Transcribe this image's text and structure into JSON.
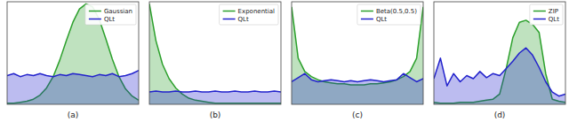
{
  "chart_data": [
    {
      "type": "area",
      "xlabel": "(a)",
      "xlim": [
        0,
        1
      ],
      "ylim": [
        0,
        1
      ],
      "tick_labels": false,
      "legend": "upper right",
      "x": [
        0,
        0.05,
        0.1,
        0.15,
        0.2,
        0.25,
        0.3,
        0.35,
        0.4,
        0.45,
        0.5,
        0.55,
        0.6,
        0.65,
        0.7,
        0.75,
        0.8,
        0.85,
        0.9,
        0.95,
        1
      ],
      "series": [
        {
          "name": "Gaussian",
          "color": "#2ca02c",
          "values": [
            0.01,
            0.01,
            0.02,
            0.03,
            0.05,
            0.09,
            0.16,
            0.27,
            0.43,
            0.62,
            0.8,
            0.93,
            0.98,
            0.95,
            0.83,
            0.64,
            0.44,
            0.27,
            0.15,
            0.08,
            0.04
          ]
        },
        {
          "name": "QLt",
          "color": "#2222cc",
          "values": [
            0.28,
            0.3,
            0.27,
            0.29,
            0.28,
            0.3,
            0.28,
            0.27,
            0.29,
            0.28,
            0.3,
            0.29,
            0.28,
            0.27,
            0.29,
            0.28,
            0.3,
            0.27,
            0.28,
            0.3,
            0.33
          ]
        }
      ]
    },
    {
      "type": "area",
      "xlabel": "(b)",
      "xlim": [
        0,
        1
      ],
      "ylim": [
        0,
        1
      ],
      "tick_labels": false,
      "legend": "upper right",
      "x": [
        0,
        0.05,
        0.1,
        0.15,
        0.2,
        0.25,
        0.3,
        0.35,
        0.4,
        0.45,
        0.5,
        0.55,
        0.6,
        0.65,
        0.7,
        0.75,
        0.8,
        0.85,
        0.9,
        0.95,
        1
      ],
      "series": [
        {
          "name": "Exponential",
          "color": "#2ca02c",
          "values": [
            0.98,
            0.62,
            0.39,
            0.25,
            0.16,
            0.1,
            0.06,
            0.04,
            0.03,
            0.02,
            0.01,
            0.01,
            0.01,
            0.01,
            0.01,
            0.01,
            0.01,
            0.01,
            0.01,
            0.01,
            0.01
          ]
        },
        {
          "name": "QLt",
          "color": "#2222cc",
          "values": [
            0.12,
            0.13,
            0.12,
            0.12,
            0.13,
            0.12,
            0.12,
            0.13,
            0.12,
            0.12,
            0.13,
            0.12,
            0.12,
            0.13,
            0.12,
            0.12,
            0.13,
            0.12,
            0.12,
            0.13,
            0.12
          ]
        }
      ]
    },
    {
      "type": "area",
      "xlabel": "(c)",
      "xlim": [
        0,
        1
      ],
      "ylim": [
        0,
        1
      ],
      "tick_labels": false,
      "legend": "upper right",
      "x": [
        0,
        0.05,
        0.1,
        0.15,
        0.2,
        0.25,
        0.3,
        0.35,
        0.4,
        0.45,
        0.5,
        0.55,
        0.6,
        0.65,
        0.7,
        0.75,
        0.8,
        0.85,
        0.9,
        0.95,
        1
      ],
      "series": [
        {
          "name": "Beta(0.5,0.5)",
          "color": "#2ca02c",
          "values": [
            0.95,
            0.45,
            0.32,
            0.27,
            0.24,
            0.22,
            0.21,
            0.2,
            0.2,
            0.19,
            0.19,
            0.19,
            0.2,
            0.2,
            0.21,
            0.22,
            0.24,
            0.27,
            0.32,
            0.45,
            0.95
          ]
        },
        {
          "name": "QLt",
          "color": "#2222cc",
          "values": [
            0.22,
            0.26,
            0.3,
            0.24,
            0.22,
            0.23,
            0.24,
            0.23,
            0.22,
            0.23,
            0.22,
            0.23,
            0.24,
            0.23,
            0.22,
            0.23,
            0.24,
            0.3,
            0.26,
            0.22,
            0.25
          ]
        }
      ]
    },
    {
      "type": "area",
      "xlabel": "(d)",
      "xlim": [
        0,
        1
      ],
      "ylim": [
        0,
        1
      ],
      "tick_labels": false,
      "legend": "upper right",
      "x": [
        0,
        0.05,
        0.1,
        0.15,
        0.2,
        0.25,
        0.3,
        0.35,
        0.4,
        0.45,
        0.5,
        0.55,
        0.6,
        0.65,
        0.7,
        0.75,
        0.8,
        0.85,
        0.9,
        0.95,
        1
      ],
      "series": [
        {
          "name": "ZIP",
          "color": "#2ca02c",
          "values": [
            0.02,
            0.01,
            0.01,
            0.01,
            0.02,
            0.02,
            0.02,
            0.03,
            0.04,
            0.05,
            0.1,
            0.35,
            0.65,
            0.8,
            0.82,
            0.78,
            0.7,
            0.3,
            0.05,
            0.03,
            0.02
          ]
        },
        {
          "name": "QLt",
          "color": "#2222cc",
          "values": [
            0.25,
            0.45,
            0.18,
            0.3,
            0.22,
            0.28,
            0.25,
            0.32,
            0.26,
            0.3,
            0.28,
            0.35,
            0.42,
            0.5,
            0.55,
            0.48,
            0.36,
            0.22,
            0.12,
            0.08,
            0.1
          ]
        }
      ]
    }
  ]
}
